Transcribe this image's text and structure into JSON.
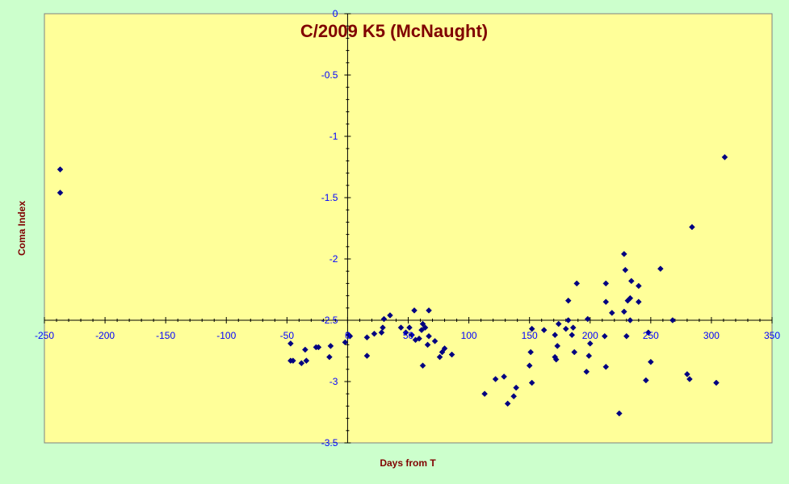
{
  "chart_data": {
    "type": "scatter",
    "title": "C/2009 K5 (McNaught)",
    "xlabel": "Days from T",
    "ylabel": "Coma Index",
    "xlim": [
      -250,
      350
    ],
    "ylim": [
      -3.5,
      0
    ],
    "x_ticks": [
      -250,
      -200,
      -150,
      -100,
      -50,
      0,
      50,
      100,
      150,
      200,
      250,
      300,
      350
    ],
    "y_ticks": [
      0,
      -0.5,
      -1,
      -1.5,
      -2,
      -2.5,
      -3,
      -3.5
    ],
    "x_tick_labels": [
      "-250",
      "-200",
      "-150",
      "-100",
      "-50",
      "0",
      "50",
      "100",
      "150",
      "200",
      "250",
      "300",
      "350"
    ],
    "y_tick_labels": [
      "0",
      "-0.5",
      "-1",
      "-1.5",
      "-2",
      "-2.5",
      "-3",
      "-3.5"
    ],
    "x_axis_crosses_y_at": -2.5,
    "y_axis_crosses_x_at": 0,
    "grid": false,
    "legend": "none",
    "colors": {
      "page_background": "#ccffcc",
      "plot_background": "#ffff99",
      "marker": "#000080",
      "title": "#800000",
      "tick_labels": "#0000ff"
    },
    "points": [
      {
        "x": -237,
        "y": -1.27
      },
      {
        "x": -237,
        "y": -1.46
      },
      {
        "x": -47,
        "y": -2.69
      },
      {
        "x": -47,
        "y": -2.83
      },
      {
        "x": -45,
        "y": -2.83
      },
      {
        "x": -38,
        "y": -2.85
      },
      {
        "x": -35,
        "y": -2.74
      },
      {
        "x": -34,
        "y": -2.83
      },
      {
        "x": -26,
        "y": -2.72
      },
      {
        "x": -24,
        "y": -2.72
      },
      {
        "x": -15,
        "y": -2.8
      },
      {
        "x": -14,
        "y": -2.71
      },
      {
        "x": -2,
        "y": -2.68
      },
      {
        "x": 1,
        "y": -2.62
      },
      {
        "x": 2,
        "y": -2.63
      },
      {
        "x": 16,
        "y": -2.64
      },
      {
        "x": 16,
        "y": -2.79
      },
      {
        "x": 22,
        "y": -2.61
      },
      {
        "x": 28,
        "y": -2.6
      },
      {
        "x": 29,
        "y": -2.56
      },
      {
        "x": 30,
        "y": -2.49
      },
      {
        "x": 35,
        "y": -2.46
      },
      {
        "x": 44,
        "y": -2.56
      },
      {
        "x": 48,
        "y": -2.6
      },
      {
        "x": 51,
        "y": -2.56
      },
      {
        "x": 53,
        "y": -2.62
      },
      {
        "x": 55,
        "y": -2.42
      },
      {
        "x": 56,
        "y": -2.66
      },
      {
        "x": 59,
        "y": -2.65
      },
      {
        "x": 61,
        "y": -2.58
      },
      {
        "x": 62,
        "y": -2.53
      },
      {
        "x": 62,
        "y": -2.87
      },
      {
        "x": 64,
        "y": -2.56
      },
      {
        "x": 66,
        "y": -2.7
      },
      {
        "x": 67,
        "y": -2.63
      },
      {
        "x": 67,
        "y": -2.42
      },
      {
        "x": 72,
        "y": -2.67
      },
      {
        "x": 76,
        "y": -2.8
      },
      {
        "x": 78,
        "y": -2.76
      },
      {
        "x": 80,
        "y": -2.73
      },
      {
        "x": 86,
        "y": -2.78
      },
      {
        "x": 113,
        "y": -3.1
      },
      {
        "x": 122,
        "y": -2.98
      },
      {
        "x": 129,
        "y": -2.96
      },
      {
        "x": 132,
        "y": -3.18
      },
      {
        "x": 137,
        "y": -3.12
      },
      {
        "x": 139,
        "y": -3.05
      },
      {
        "x": 150,
        "y": -2.87
      },
      {
        "x": 151,
        "y": -2.76
      },
      {
        "x": 152,
        "y": -3.01
      },
      {
        "x": 152,
        "y": -2.57
      },
      {
        "x": 162,
        "y": -2.58
      },
      {
        "x": 171,
        "y": -2.8
      },
      {
        "x": 171,
        "y": -2.62
      },
      {
        "x": 172,
        "y": -2.82
      },
      {
        "x": 173,
        "y": -2.71
      },
      {
        "x": 174,
        "y": -2.53
      },
      {
        "x": 180,
        "y": -2.57
      },
      {
        "x": 182,
        "y": -2.34
      },
      {
        "x": 182,
        "y": -2.5
      },
      {
        "x": 185,
        "y": -2.62
      },
      {
        "x": 186,
        "y": -2.56
      },
      {
        "x": 187,
        "y": -2.76
      },
      {
        "x": 189,
        "y": -2.2
      },
      {
        "x": 197,
        "y": -2.92
      },
      {
        "x": 198,
        "y": -2.49
      },
      {
        "x": 199,
        "y": -2.79
      },
      {
        "x": 200,
        "y": -2.69
      },
      {
        "x": 212,
        "y": -2.63
      },
      {
        "x": 213,
        "y": -2.88
      },
      {
        "x": 213,
        "y": -2.2
      },
      {
        "x": 213,
        "y": -2.35
      },
      {
        "x": 218,
        "y": -2.44
      },
      {
        "x": 224,
        "y": -3.26
      },
      {
        "x": 228,
        "y": -1.96
      },
      {
        "x": 228,
        "y": -2.43
      },
      {
        "x": 229,
        "y": -2.09
      },
      {
        "x": 230,
        "y": -2.63
      },
      {
        "x": 231,
        "y": -2.34
      },
      {
        "x": 233,
        "y": -2.32
      },
      {
        "x": 233,
        "y": -2.5
      },
      {
        "x": 234,
        "y": -2.18
      },
      {
        "x": 240,
        "y": -2.35
      },
      {
        "x": 240,
        "y": -2.22
      },
      {
        "x": 246,
        "y": -2.99
      },
      {
        "x": 248,
        "y": -2.6
      },
      {
        "x": 250,
        "y": -2.84
      },
      {
        "x": 258,
        "y": -2.08
      },
      {
        "x": 268,
        "y": -2.5
      },
      {
        "x": 280,
        "y": -2.94
      },
      {
        "x": 282,
        "y": -2.98
      },
      {
        "x": 284,
        "y": -1.74
      },
      {
        "x": 304,
        "y": -3.01
      },
      {
        "x": 311,
        "y": -1.17
      }
    ]
  }
}
